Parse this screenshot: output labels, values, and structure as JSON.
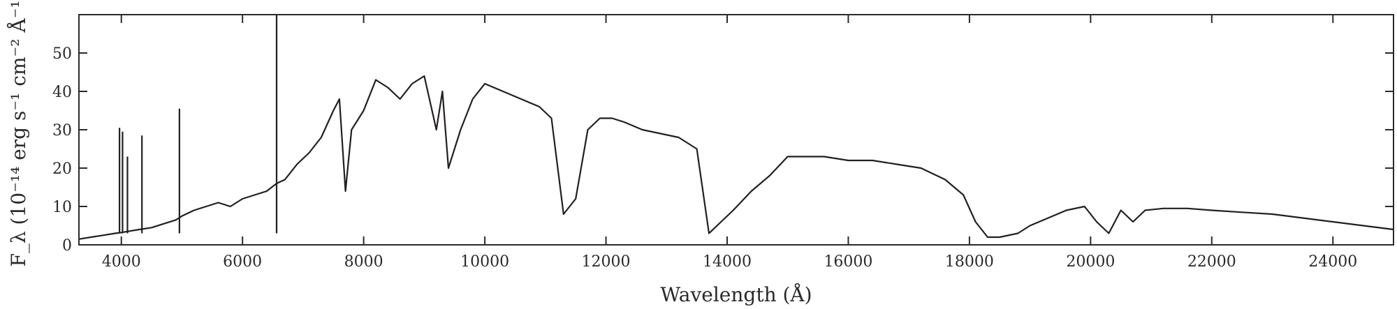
{
  "chart_data": {
    "type": "line",
    "title": "",
    "xlabel": "Wavelength (Å)",
    "ylabel": "F_λ (10⁻¹⁴ erg s⁻¹ cm⁻² Å⁻¹)",
    "xlim": [
      3300,
      25000
    ],
    "ylim": [
      0,
      60
    ],
    "xticks": [
      4000,
      6000,
      8000,
      10000,
      12000,
      14000,
      16000,
      18000,
      20000,
      22000,
      24000
    ],
    "yticks": [
      0,
      10,
      20,
      30,
      40,
      50
    ],
    "grid": false,
    "legend": "none",
    "line_color": "#231f20",
    "series": [
      {
        "x": [
          3300,
          3500,
          3700,
          3900,
          4000,
          4100,
          4300,
          4500,
          4700,
          4900,
          5000,
          5200,
          5400,
          5600,
          5800,
          6000,
          6200,
          6400,
          6563,
          6700,
          6900,
          7100,
          7300,
          7500,
          7600,
          7700,
          7800,
          8000,
          8200,
          8400,
          8600,
          8800,
          9000,
          9200,
          9300,
          9400,
          9600,
          9800,
          10000,
          10300,
          10600,
          10900,
          11100,
          11300,
          11500,
          11700,
          11900,
          12100,
          12300,
          12600,
          12900,
          13200,
          13500,
          13700,
          13900,
          14100,
          14400,
          14700,
          15000,
          15300,
          15600,
          16000,
          16400,
          16800,
          17200,
          17600,
          17900,
          18100,
          18300,
          18500,
          18800,
          19000,
          19300,
          19600,
          19900,
          20100,
          20300,
          20500,
          20700,
          20900,
          21200,
          21600,
          22000,
          22500,
          23000,
          23500,
          24000,
          24500,
          25000
        ],
        "y": [
          1.5,
          2.0,
          2.5,
          3.0,
          3.2,
          3.5,
          4.0,
          4.5,
          5.5,
          6.5,
          7.5,
          9.0,
          10.0,
          11.0,
          10.0,
          12.0,
          13.0,
          14.0,
          16.0,
          17.0,
          21.0,
          24.0,
          28.0,
          35.0,
          38.0,
          14.0,
          30.0,
          35.0,
          43.0,
          41.0,
          38.0,
          42.0,
          44.0,
          30.0,
          40.0,
          20.0,
          30.0,
          38.0,
          42.0,
          40.0,
          38.0,
          36.0,
          33.0,
          8.0,
          12.0,
          30.0,
          33.0,
          33.0,
          32.0,
          30.0,
          29.0,
          28.0,
          25.0,
          3.0,
          6.0,
          9.0,
          14.0,
          18.0,
          23.0,
          23.0,
          23.0,
          22.0,
          22.0,
          21.0,
          20.0,
          17.0,
          13.0,
          6.0,
          2.0,
          2.0,
          3.0,
          5.0,
          7.0,
          9.0,
          10.0,
          6.0,
          3.0,
          9.0,
          6.0,
          9.0,
          9.5,
          9.5,
          9.0,
          8.5,
          8.0,
          7.0,
          6.0,
          5.0,
          4.0
        ]
      }
    ],
    "spikes": [
      {
        "x": 3970,
        "y": 30.5
      },
      {
        "x": 4020,
        "y": 29.5
      },
      {
        "x": 4101,
        "y": 23.0
      },
      {
        "x": 4340,
        "y": 28.5
      },
      {
        "x": 4959,
        "y": 35.5
      },
      {
        "x": 6563,
        "y": 60
      }
    ]
  }
}
